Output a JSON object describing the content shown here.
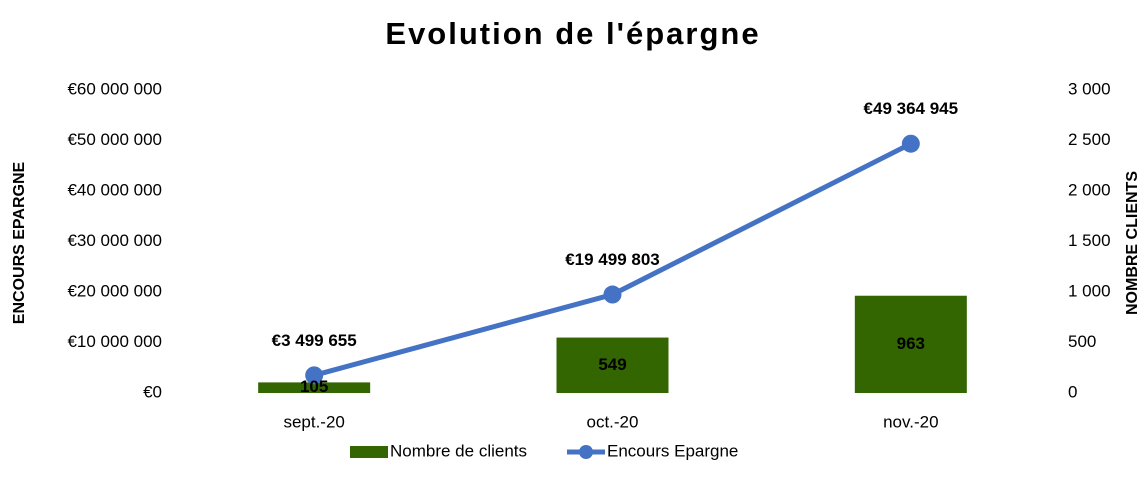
{
  "chart_data": {
    "type": "bar-line",
    "title": "Evolution de l'épargne",
    "y_label": "ENCOURS EPARGNE",
    "y2_label": "NOMBRE CLIENTS",
    "categories": [
      "sept.-20",
      "oct.-20",
      "nov.-20"
    ],
    "series": [
      {
        "name": "Nombre de clients",
        "type": "bar",
        "axis": "y2",
        "color": "#336600",
        "values": [
          105,
          549,
          963
        ]
      },
      {
        "name": "Encours Epargne",
        "type": "line",
        "axis": "y",
        "color": "#4472c4",
        "values": [
          3499655,
          19499803,
          49364945
        ],
        "value_labels": [
          "€3 499 655",
          "€19 499 803",
          "€49 364 945"
        ]
      }
    ],
    "ylim": [
      0,
      60000000
    ],
    "yticks": [
      {
        "value": 0,
        "label": "€0"
      },
      {
        "value": 10000000,
        "label": "€10 000 000"
      },
      {
        "value": 20000000,
        "label": "€20 000 000"
      },
      {
        "value": 30000000,
        "label": "€30 000 000"
      },
      {
        "value": 40000000,
        "label": "€40 000 000"
      },
      {
        "value": 50000000,
        "label": "€50 000 000"
      },
      {
        "value": 60000000,
        "label": "€60 000 000"
      }
    ],
    "y2lim": [
      0,
      3000
    ],
    "y2ticks": [
      0,
      500,
      {
        "value": 1000,
        "label": "1 000"
      },
      {
        "value": 1500,
        "label": "1 500"
      },
      {
        "value": 2000,
        "label": "2 000"
      },
      {
        "value": 2500,
        "label": "2 500"
      },
      {
        "value": 3000,
        "label": "3 000"
      }
    ],
    "legend": "bottom"
  }
}
